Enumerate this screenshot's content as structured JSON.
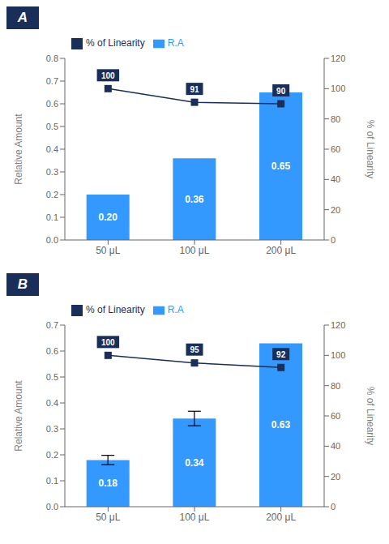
{
  "chart_data": [
    {
      "type": "bar",
      "title": "A",
      "categories": [
        "50 μL",
        "100 μL",
        "200 μL"
      ],
      "series": [
        {
          "name": "R.A",
          "type": "bar",
          "color": "#3399FF",
          "values": [
            0.2,
            0.36,
            0.65
          ],
          "value_labels": [
            "0.20",
            "0.36",
            "0.65"
          ],
          "errors": [
            null,
            null,
            null
          ],
          "data_labels": true
        },
        {
          "name": "% of Linearity",
          "type": "line",
          "axis": "y2",
          "color": "#1a2e5a",
          "marker": "square",
          "values": [
            100,
            91,
            90
          ],
          "data_labels": true
        }
      ],
      "ylim": [
        0.0,
        0.8
      ],
      "yticks": [
        {
          "value": 0.0,
          "label": "0.0"
        },
        0.1,
        0.2,
        0.3,
        0.4,
        0.5,
        0.6,
        0.7,
        0.8
      ],
      "y2lim": [
        0,
        120
      ],
      "y2ticks": [
        0,
        20,
        40,
        60,
        80,
        100,
        120
      ],
      "ylabel": "Relative Amount",
      "y2label": "% of Linearity",
      "legend": "upper left"
    },
    {
      "type": "bar",
      "title": "B",
      "categories": [
        "50 μL",
        "100 μL",
        "200 μL"
      ],
      "series": [
        {
          "name": "R.A",
          "type": "bar",
          "color": "#3399FF",
          "values": [
            0.18,
            0.34,
            0.63
          ],
          "value_labels": [
            "0.18",
            "0.34",
            "0.63"
          ],
          "errors": [
            0.018,
            0.028,
            null
          ],
          "data_labels": true
        },
        {
          "name": "% of Linearity",
          "type": "line",
          "axis": "y2",
          "color": "#1a2e5a",
          "marker": "square",
          "values": [
            100,
            95,
            92
          ],
          "data_labels": true
        }
      ],
      "ylim": [
        0.0,
        0.7
      ],
      "yticks": [
        {
          "value": 0.0,
          "label": "0.0"
        },
        0.1,
        0.2,
        0.3,
        0.4,
        0.5,
        0.6,
        0.7
      ],
      "y2lim": [
        0,
        120
      ],
      "y2ticks": [
        0,
        20,
        40,
        60,
        80,
        100,
        120
      ],
      "ylabel": "Relative Amount",
      "y2label": "% of Linearity",
      "legend": "upper left"
    }
  ]
}
